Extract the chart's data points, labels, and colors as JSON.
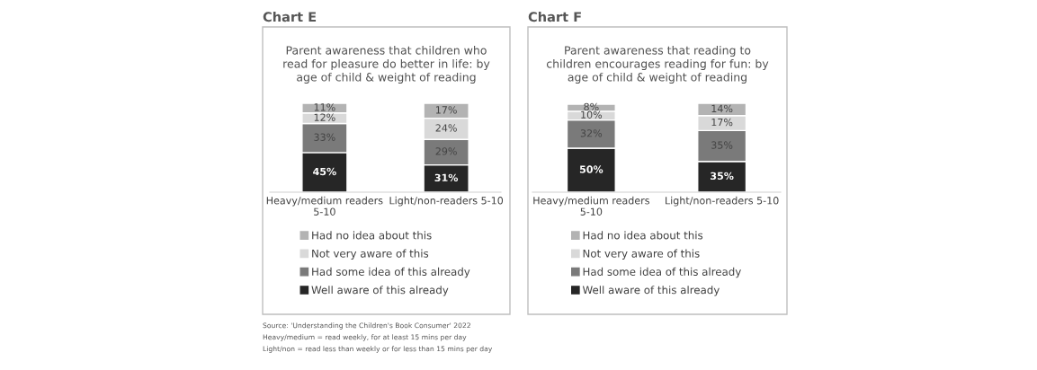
{
  "chart_data": [
    {
      "type": "bar",
      "title": "Chart E",
      "subtitle": "Parent awareness that children who\nread for pleasure do better in life: by\nage of child & weight of reading",
      "categories": [
        "Heavy/medium readers\n5-10",
        "Light/non-readers 5-10"
      ],
      "stacked": true,
      "legend": "bottom",
      "grid": false,
      "tick_labels": "x",
      "series": [
        {
          "name": "Well aware of this already",
          "color": "#262626",
          "values": [
            45,
            31
          ],
          "value_labels": [
            "45%",
            "31%"
          ]
        },
        {
          "name": "Had some idea of this already",
          "color": "#7a7a7a",
          "values": [
            33,
            29
          ],
          "value_labels": [
            "33%",
            "29%"
          ]
        },
        {
          "name": "Not very aware of this",
          "color": "#d9d9d9",
          "values": [
            12,
            24
          ],
          "value_labels": [
            "12%",
            "24%"
          ]
        },
        {
          "name": "Had no idea about this",
          "color": "#b3b3b3",
          "values": [
            11,
            17
          ],
          "value_labels": [
            "11%",
            "17%"
          ]
        }
      ],
      "annotations": [
        "Source: 'Understanding the Children's Book Consumer' 2022",
        "Heavy/medium = read weekly, for at least 15 mins per day",
        "Light/non = read less than weekly or for less than 15 mins per day"
      ]
    },
    {
      "type": "bar",
      "title": "Chart F",
      "subtitle": "Parent awareness that reading to\nchildren encourages reading for fun: by\nage of child & weight of reading",
      "categories": [
        "Heavy/medium readers\n5-10",
        "Light/non-readers 5-10"
      ],
      "stacked": true,
      "legend": "bottom",
      "grid": false,
      "tick_labels": "x",
      "series": [
        {
          "name": "Well aware of this already",
          "color": "#262626",
          "values": [
            50,
            35
          ],
          "value_labels": [
            "50%",
            "35%"
          ]
        },
        {
          "name": "Had some idea of this already",
          "color": "#7a7a7a",
          "values": [
            32,
            35
          ],
          "value_labels": [
            "32%",
            "35%"
          ]
        },
        {
          "name": "Not very aware of this",
          "color": "#d9d9d9",
          "values": [
            10,
            17
          ],
          "value_labels": [
            "10%",
            "17%"
          ]
        },
        {
          "name": "Had no idea about this",
          "color": "#b3b3b3",
          "values": [
            8,
            14
          ],
          "value_labels": [
            "8%",
            "14%"
          ]
        }
      ]
    }
  ]
}
